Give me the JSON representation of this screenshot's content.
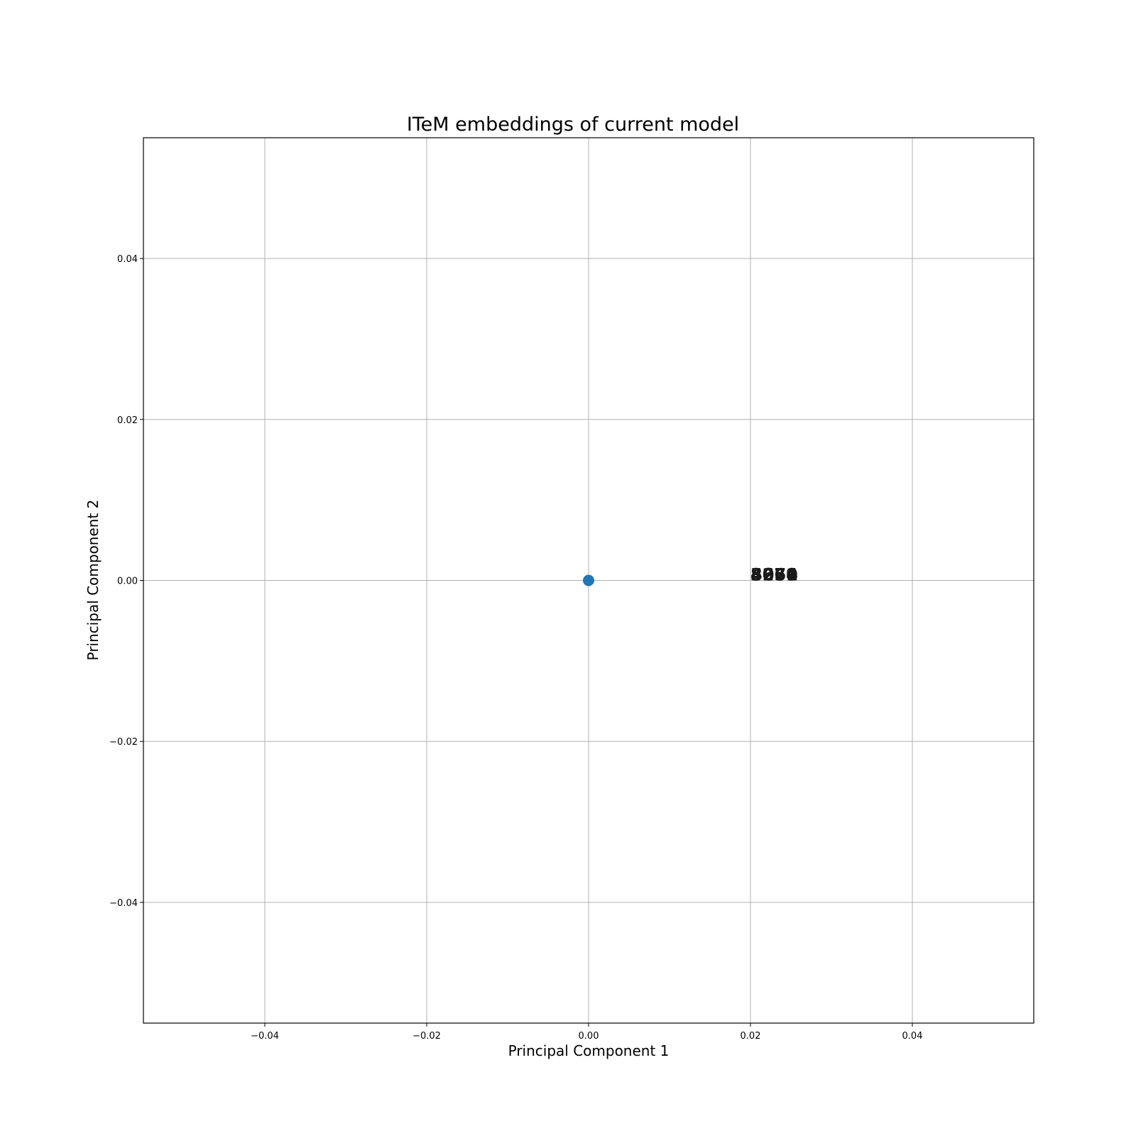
{
  "chart_data": {
    "type": "scatter",
    "title": "ITeM embeddings of current model",
    "xlabel": "Principal Component 1",
    "ylabel": "Principal Component 2",
    "xlim": [
      -0.055,
      0.055
    ],
    "ylim": [
      -0.055,
      0.055
    ],
    "grid": true,
    "x_ticks": [
      -0.04,
      -0.02,
      0.0,
      0.02,
      0.04
    ],
    "y_ticks": [
      -0.04,
      -0.02,
      0.0,
      0.02,
      0.04
    ],
    "x_tick_labels": [
      "−0.04",
      "−0.02",
      "0.00",
      "0.02",
      "0.04"
    ],
    "y_tick_labels": [
      "−0.04",
      "−0.02",
      "0.00",
      "0.02",
      "0.04"
    ],
    "points": [
      {
        "x": 0.0,
        "y": 0.0
      }
    ],
    "annotations": [
      {
        "text": "5079",
        "x": 0.02,
        "y": 0.0
      },
      {
        "text": "3250",
        "x": 0.02,
        "y": 0.0
      },
      {
        "text": "8674",
        "x": 0.02,
        "y": 0.0
      },
      {
        "text": "4061",
        "x": 0.02,
        "y": 0.0
      }
    ],
    "marker_color": "#1f77b4",
    "grid_color": "#b0b0b0"
  }
}
